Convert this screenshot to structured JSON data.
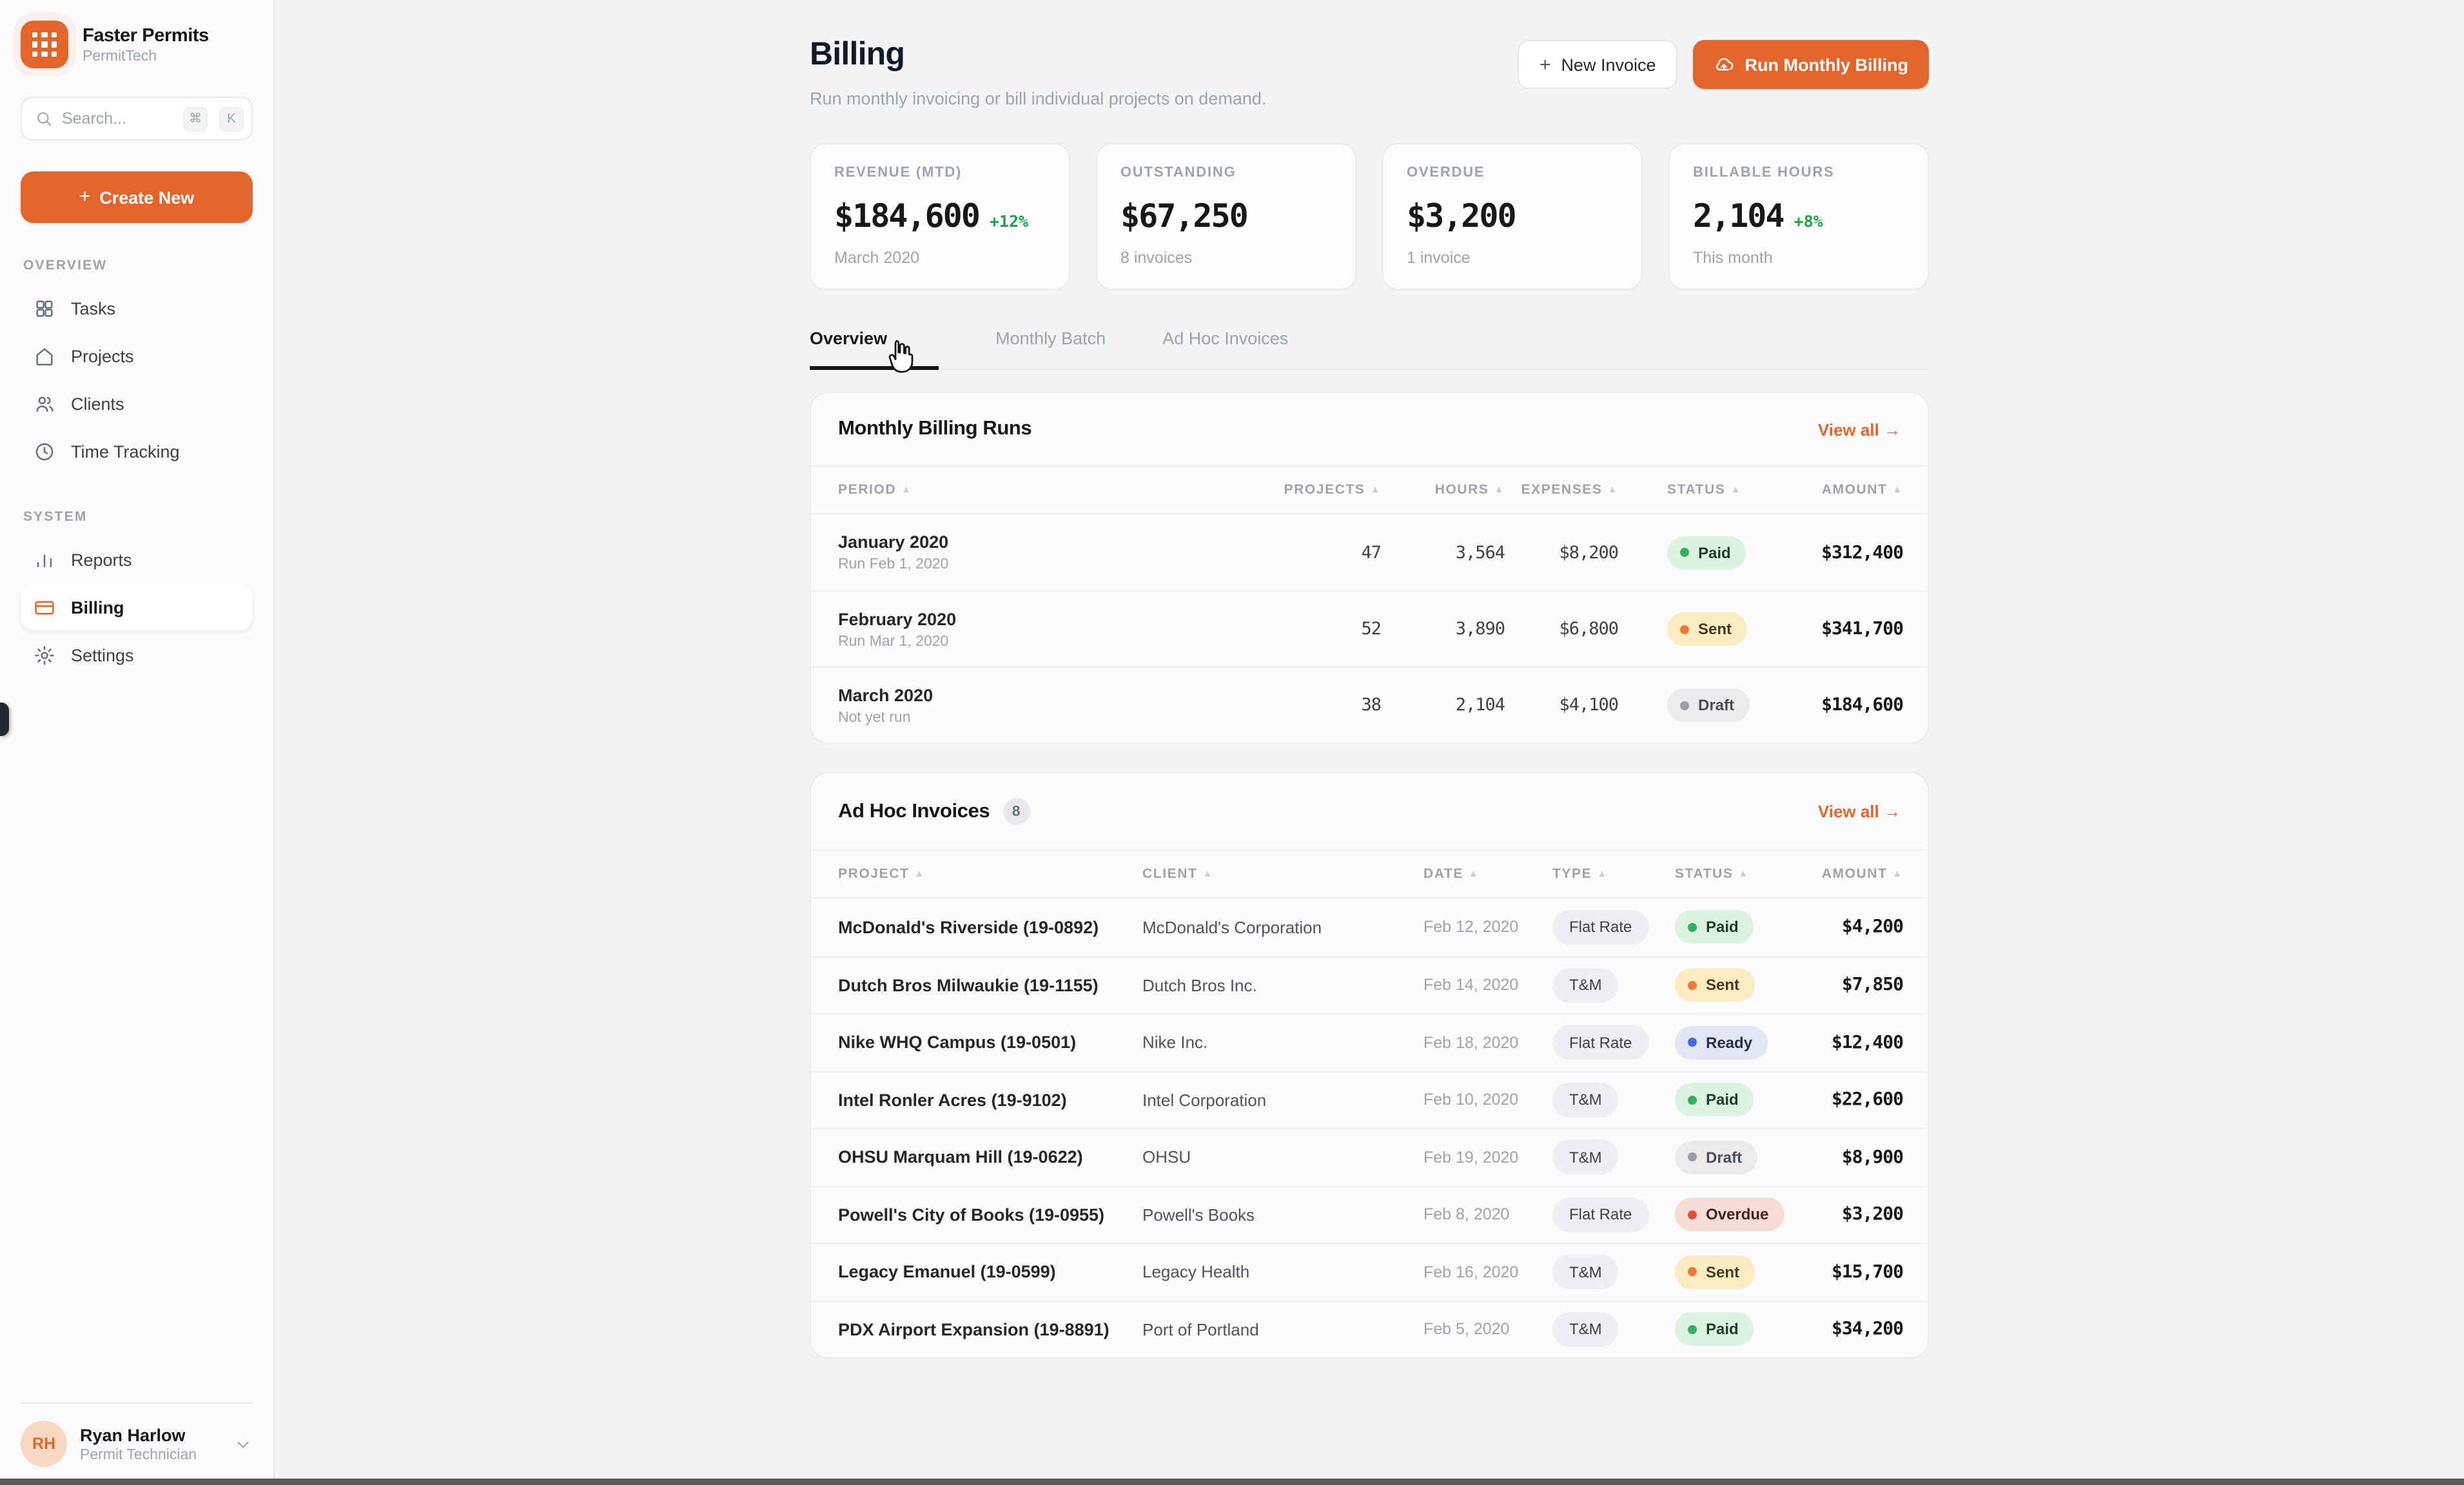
{
  "app": {
    "name": "Faster Permits",
    "org": "PermitTech",
    "accent_color": "#E2662C"
  },
  "sidebar": {
    "search": {
      "placeholder": "Search...",
      "kbd_keys": [
        "⌘",
        "K"
      ],
      "icon": "search-icon"
    },
    "create_button": {
      "plus": "+",
      "label": "Create New"
    },
    "sections": [
      {
        "label": "OVERVIEW",
        "items": [
          {
            "label": "Tasks",
            "icon": "grid-icon",
            "active": false
          },
          {
            "label": "Projects",
            "icon": "home-icon",
            "active": false
          },
          {
            "label": "Clients",
            "icon": "users-icon",
            "active": false
          },
          {
            "label": "Time Tracking",
            "icon": "clock-icon",
            "active": false
          }
        ]
      },
      {
        "label": "SYSTEM",
        "items": [
          {
            "label": "Reports",
            "icon": "bar-chart-icon",
            "active": false
          },
          {
            "label": "Billing",
            "icon": "credit-card-icon",
            "active": true
          },
          {
            "label": "Settings",
            "icon": "gear-icon",
            "active": false
          }
        ]
      }
    ],
    "user": {
      "initials": "RH",
      "name": "Ryan Harlow",
      "role": "Permit Technician"
    }
  },
  "header": {
    "title": "Billing",
    "subtitle": "Run monthly invoicing or bill individual projects on demand.",
    "buttons": [
      {
        "plus": "+",
        "label": "New Invoice",
        "style": "secondary",
        "icon": "plus-icon"
      },
      {
        "label": "Run Monthly Billing",
        "style": "primary",
        "icon": "cloud-upload-icon"
      }
    ]
  },
  "stats": [
    {
      "label": "REVENUE (MTD)",
      "value": "$184,600",
      "delta": "+12%",
      "sub": "March 2020"
    },
    {
      "label": "OUTSTANDING",
      "value": "$67,250",
      "delta": "",
      "sub": "8 invoices"
    },
    {
      "label": "OVERDUE",
      "value": "$3,200",
      "delta": "",
      "sub": "1 invoice"
    },
    {
      "label": "BILLABLE HOURS",
      "value": "2,104",
      "delta": "+8%",
      "sub": "This month"
    }
  ],
  "tabs": [
    {
      "label": "Overview",
      "active": true
    },
    {
      "label": "Monthly Batch",
      "active": false
    },
    {
      "label": "Ad Hoc Invoices",
      "active": false
    }
  ],
  "monthly_runs": {
    "title": "Monthly Billing Runs",
    "view_all": "View all →",
    "columns": [
      "PERIOD",
      "PROJECTS",
      "HOURS",
      "EXPENSES",
      "STATUS",
      "AMOUNT"
    ],
    "sort_icon": "▲",
    "rows": [
      {
        "period": "January 2020",
        "sub": "Run Feb 1, 2020",
        "projects": "47",
        "hours": "3,564",
        "expenses": "$8,200",
        "status": "Paid",
        "amount": "$312,400"
      },
      {
        "period": "February 2020",
        "sub": "Run Mar 1, 2020",
        "projects": "52",
        "hours": "3,890",
        "expenses": "$6,800",
        "status": "Sent",
        "amount": "$341,700"
      },
      {
        "period": "March 2020",
        "sub": "Not yet run",
        "projects": "38",
        "hours": "2,104",
        "expenses": "$4,100",
        "status": "Draft",
        "amount": "$184,600"
      }
    ]
  },
  "adhoc_invoices": {
    "title": "Ad Hoc Invoices",
    "count": "8",
    "view_all": "View all →",
    "columns": [
      "PROJECT",
      "CLIENT",
      "DATE",
      "TYPE",
      "STATUS",
      "AMOUNT"
    ],
    "sort_icon": "▲",
    "rows": [
      {
        "project": "McDonald's Riverside (19-0892)",
        "client": "McDonald's Corporation",
        "date": "Feb 12, 2020",
        "type": "Flat Rate",
        "status": "Paid",
        "amount": "$4,200"
      },
      {
        "project": "Dutch Bros Milwaukie (19-1155)",
        "client": "Dutch Bros Inc.",
        "date": "Feb 14, 2020",
        "type": "T&M",
        "status": "Sent",
        "amount": "$7,850"
      },
      {
        "project": "Nike WHQ Campus (19-0501)",
        "client": "Nike Inc.",
        "date": "Feb 18, 2020",
        "type": "Flat Rate",
        "status": "Ready",
        "amount": "$12,400"
      },
      {
        "project": "Intel Ronler Acres (19-9102)",
        "client": "Intel Corporation",
        "date": "Feb 10, 2020",
        "type": "T&M",
        "status": "Paid",
        "amount": "$22,600"
      },
      {
        "project": "OHSU Marquam Hill (19-0622)",
        "client": "OHSU",
        "date": "Feb 19, 2020",
        "type": "T&M",
        "status": "Draft",
        "amount": "$8,900"
      },
      {
        "project": "Powell's City of Books (19-0955)",
        "client": "Powell's Books",
        "date": "Feb 8, 2020",
        "type": "Flat Rate",
        "status": "Overdue",
        "amount": "$3,200"
      },
      {
        "project": "Legacy Emanuel (19-0599)",
        "client": "Legacy Health",
        "date": "Feb 16, 2020",
        "type": "T&M",
        "status": "Sent",
        "amount": "$15,700"
      },
      {
        "project": "PDX Airport Expansion (19-8891)",
        "client": "Port of Portland",
        "date": "Feb 5, 2020",
        "type": "T&M",
        "status": "Paid",
        "amount": "$34,200"
      }
    ]
  },
  "status_colors": {
    "Paid": {
      "bg": "#DBF3E0",
      "dot": "#33B05D",
      "text": "#253A2C"
    },
    "Sent": {
      "bg": "#FAEBC3",
      "dot": "#EC7937",
      "text": "#4A3A20"
    },
    "Draft": {
      "bg": "#EBEBEE",
      "dot": "#98A0AA",
      "text": "#4A4F57"
    },
    "Ready": {
      "bg": "#E3E7F3",
      "dot": "#4468DE",
      "text": "#272E4E"
    },
    "Overdue": {
      "bg": "#F8DCD7",
      "dot": "#D8543A",
      "text": "#46241D"
    }
  }
}
